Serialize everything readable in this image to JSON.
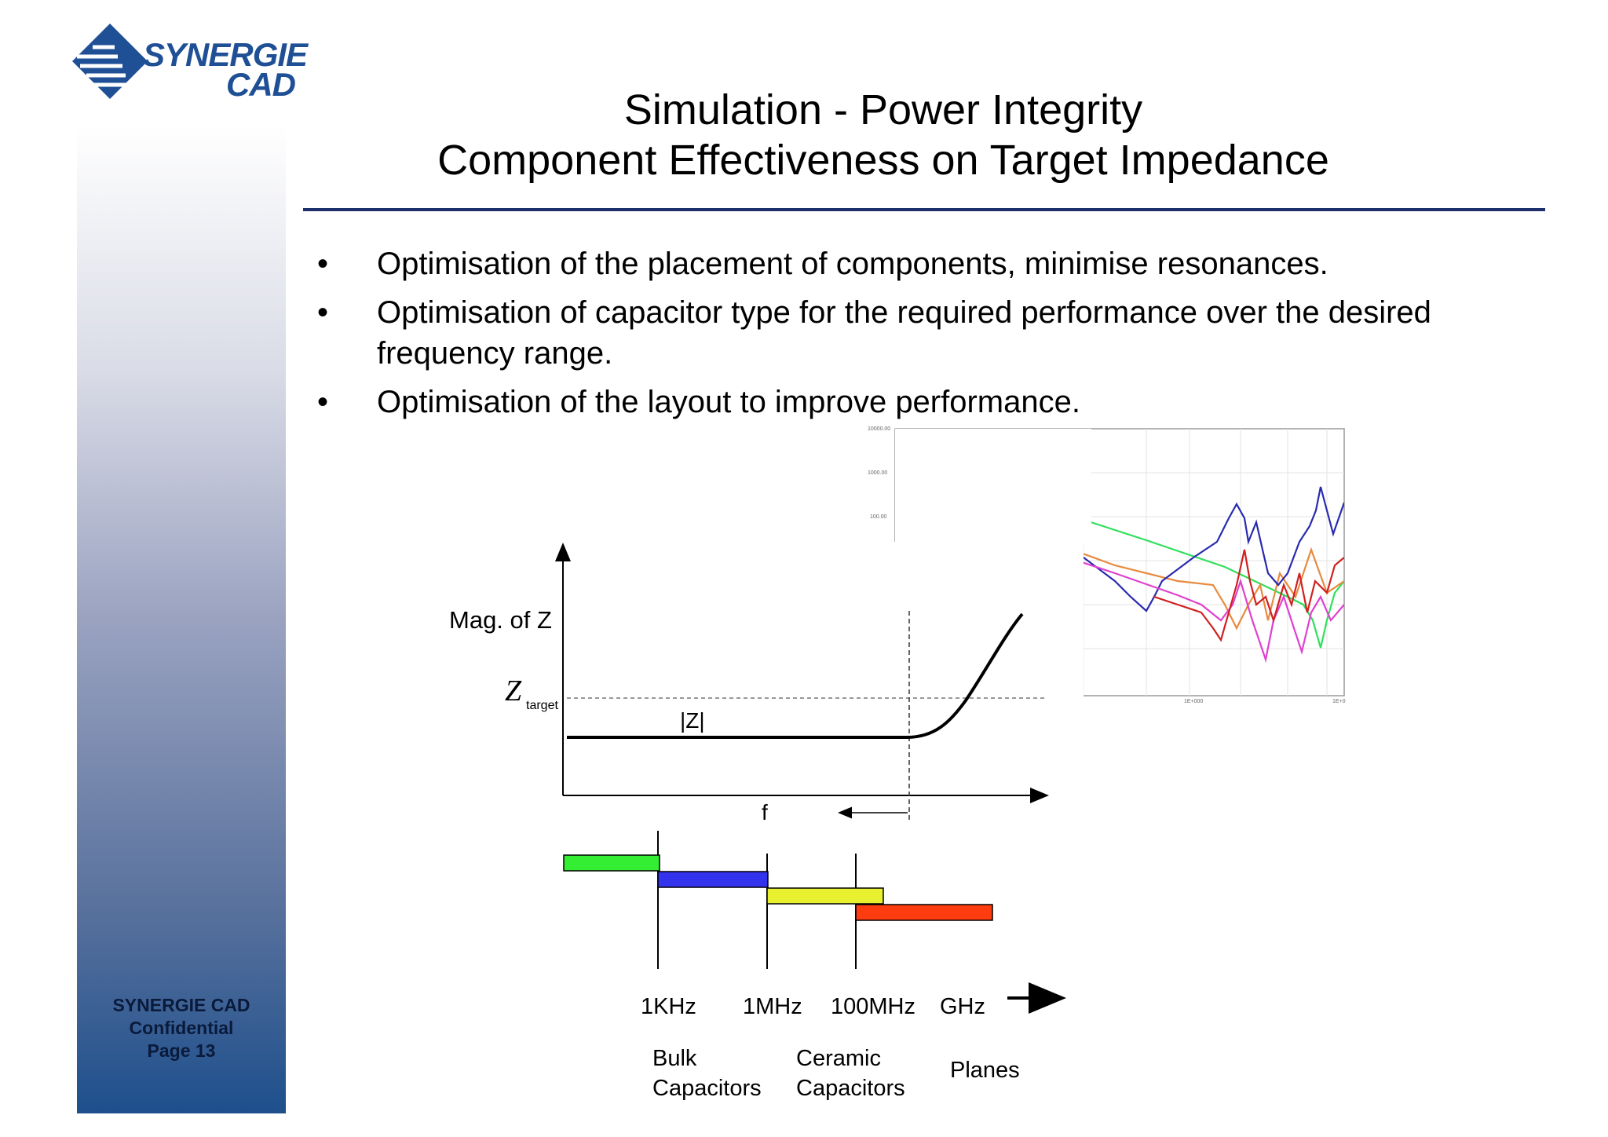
{
  "brand": {
    "logo_line1": "SYNERGIE",
    "logo_line2": "CAD",
    "footer": [
      "SYNERGIE CAD",
      "Confidential",
      "Page 13"
    ]
  },
  "title": {
    "line1": "Simulation - Power Integrity",
    "line2": "Component Effectiveness on Target Impedance"
  },
  "bullets": [
    "Optimisation of the placement of components, minimise resonances.",
    "Optimisation of capacitor type for the required performance over the desired frequency range.",
    "Optimisation of the layout to improve performance."
  ],
  "impedance_diagram": {
    "y_label": "Mag. of Z",
    "z_target_symbol": "Z",
    "z_target_subscript": "target",
    "curve_label": "|Z|",
    "x_label": "f"
  },
  "frequency_bands": {
    "ticks": [
      "1KHz",
      "1MHz",
      "100MHz",
      "GHz"
    ],
    "groups": [
      {
        "line1": "Bulk",
        "line2": "Capacitors"
      },
      {
        "line1": "Ceramic",
        "line2": "Capacitors"
      },
      {
        "line1": "Planes",
        "line2": ""
      }
    ],
    "bar_colors": [
      "#33ee33",
      "#3333ee",
      "#e8f030",
      "#ff3b10"
    ]
  },
  "plot_inset": {
    "y_ticks": [
      "10000.00",
      "1000.00",
      "100.00"
    ],
    "x_ticks": [
      "1E+000",
      "1E+0"
    ],
    "series_colors": [
      "#2ee05a",
      "#e88a40",
      "#2a2ab0",
      "#e040d0",
      "#d02020"
    ]
  }
}
